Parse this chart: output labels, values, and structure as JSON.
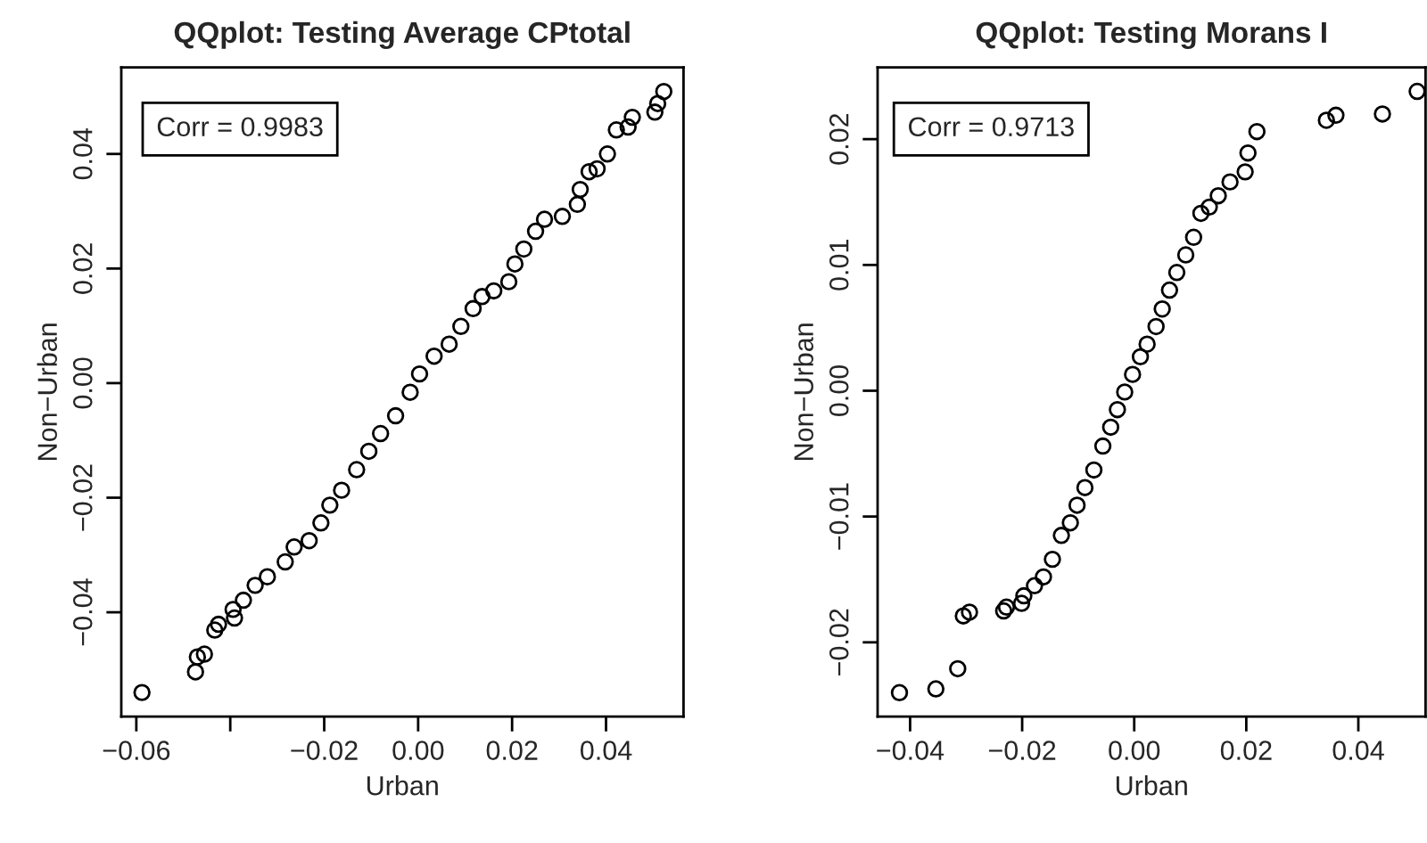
{
  "chart_data": [
    {
      "type": "scatter",
      "title": "QQplot: Testing Average CPtotal",
      "xlabel": "Urban",
      "ylabel": "Non−Urban",
      "annotations": [
        "Corr = 0.9983"
      ],
      "marker": "circle",
      "grid": false,
      "legend": false,
      "xlim": [
        -0.0632,
        0.0565
      ],
      "ylim": [
        -0.0582,
        0.0551
      ],
      "xticks": [
        {
          "value": -0.06,
          "label": "−0.06"
        },
        {
          "value": -0.04,
          "label": null
        },
        {
          "value": -0.02,
          "label": "−0.02"
        },
        {
          "value": 0.0,
          "label": "0.00"
        },
        {
          "value": 0.02,
          "label": "0.02"
        },
        {
          "value": 0.04,
          "label": "0.04"
        }
      ],
      "yticks": [
        {
          "value": -0.04,
          "label": "−0.04"
        },
        {
          "value": -0.02,
          "label": "−0.02"
        },
        {
          "value": 0.0,
          "label": "0.00"
        },
        {
          "value": 0.02,
          "label": "0.02"
        },
        {
          "value": 0.04,
          "label": "0.04"
        }
      ],
      "series": [
        {
          "color": "#000000",
          "x": [
            -0.0588,
            -0.0474,
            -0.047,
            -0.0455,
            -0.0433,
            -0.0425,
            -0.0391,
            -0.0394,
            -0.0372,
            -0.0347,
            -0.0321,
            -0.0283,
            -0.0264,
            -0.0232,
            -0.0207,
            -0.0188,
            -0.0163,
            -0.0131,
            -0.0105,
            -0.008,
            -0.0048,
            -0.0017,
            0.0003,
            0.0034,
            0.0066,
            0.0091,
            0.0117,
            0.0136,
            0.0161,
            0.0193,
            0.0206,
            0.0225,
            0.025,
            0.0269,
            0.0307,
            0.0339,
            0.0345,
            0.0364,
            0.0381,
            0.0403,
            0.0422,
            0.0447,
            0.0456,
            0.0504,
            0.051,
            0.0523
          ],
          "values": [
            -0.054,
            -0.0504,
            -0.0478,
            -0.0473,
            -0.0431,
            -0.0421,
            -0.041,
            -0.0395,
            -0.0379,
            -0.0353,
            -0.0338,
            -0.0312,
            -0.0286,
            -0.0275,
            -0.0244,
            -0.0213,
            -0.0187,
            -0.0151,
            -0.0119,
            -0.0088,
            -0.0057,
            -0.0016,
            0.0016,
            0.0047,
            0.0068,
            0.0099,
            0.013,
            0.0151,
            0.0161,
            0.0177,
            0.0208,
            0.0234,
            0.0265,
            0.0286,
            0.0291,
            0.0312,
            0.0338,
            0.0369,
            0.0374,
            0.04,
            0.0442,
            0.0447,
            0.0464,
            0.0473,
            0.0488,
            0.0509
          ]
        }
      ]
    },
    {
      "type": "scatter",
      "title": "QQplot: Testing Morans I",
      "xlabel": "Urban",
      "ylabel": "Non−Urban",
      "annotations": [
        "Corr = 0.9713"
      ],
      "marker": "circle",
      "grid": false,
      "legend": false,
      "xlim": [
        -0.0458,
        0.052
      ],
      "ylim": [
        -0.0259,
        0.0257
      ],
      "xticks": [
        {
          "value": -0.04,
          "label": "−0.04"
        },
        {
          "value": -0.02,
          "label": "−0.02"
        },
        {
          "value": 0.0,
          "label": "0.00"
        },
        {
          "value": 0.02,
          "label": "0.02"
        },
        {
          "value": 0.04,
          "label": "0.04"
        }
      ],
      "yticks": [
        {
          "value": -0.02,
          "label": "−0.02"
        },
        {
          "value": -0.01,
          "label": "−0.01"
        },
        {
          "value": 0.0,
          "label": "0.00"
        },
        {
          "value": 0.01,
          "label": "0.01"
        },
        {
          "value": 0.02,
          "label": "0.02"
        }
      ],
      "series": [
        {
          "color": "#000000",
          "x": [
            -0.0419,
            -0.0354,
            -0.0315,
            -0.0305,
            -0.0294,
            -0.0233,
            -0.0228,
            -0.0201,
            -0.0197,
            -0.0178,
            -0.0162,
            -0.0146,
            -0.013,
            -0.0114,
            -0.0102,
            -0.0088,
            -0.0072,
            -0.0056,
            -0.0042,
            -0.003,
            -0.0017,
            -0.0003,
            0.0011,
            0.0023,
            0.0039,
            0.005,
            0.0063,
            0.0076,
            0.0092,
            0.0106,
            0.0119,
            0.0134,
            0.015,
            0.0171,
            0.0198,
            0.0203,
            0.0219,
            0.0343,
            0.036,
            0.0443,
            0.0505
          ],
          "values": [
            -0.024,
            -0.0237,
            -0.0221,
            -0.0179,
            -0.0176,
            -0.0175,
            -0.0172,
            -0.0169,
            -0.0163,
            -0.0155,
            -0.0148,
            -0.0134,
            -0.0115,
            -0.0105,
            -0.0091,
            -0.0077,
            -0.0063,
            -0.0044,
            -0.0029,
            -0.0015,
            -0.0001,
            0.0013,
            0.0027,
            0.0037,
            0.0051,
            0.0065,
            0.008,
            0.0094,
            0.0108,
            0.0122,
            0.0141,
            0.0146,
            0.0155,
            0.0166,
            0.0174,
            0.0189,
            0.0206,
            0.0215,
            0.0219,
            0.022,
            0.0238
          ]
        }
      ]
    }
  ]
}
